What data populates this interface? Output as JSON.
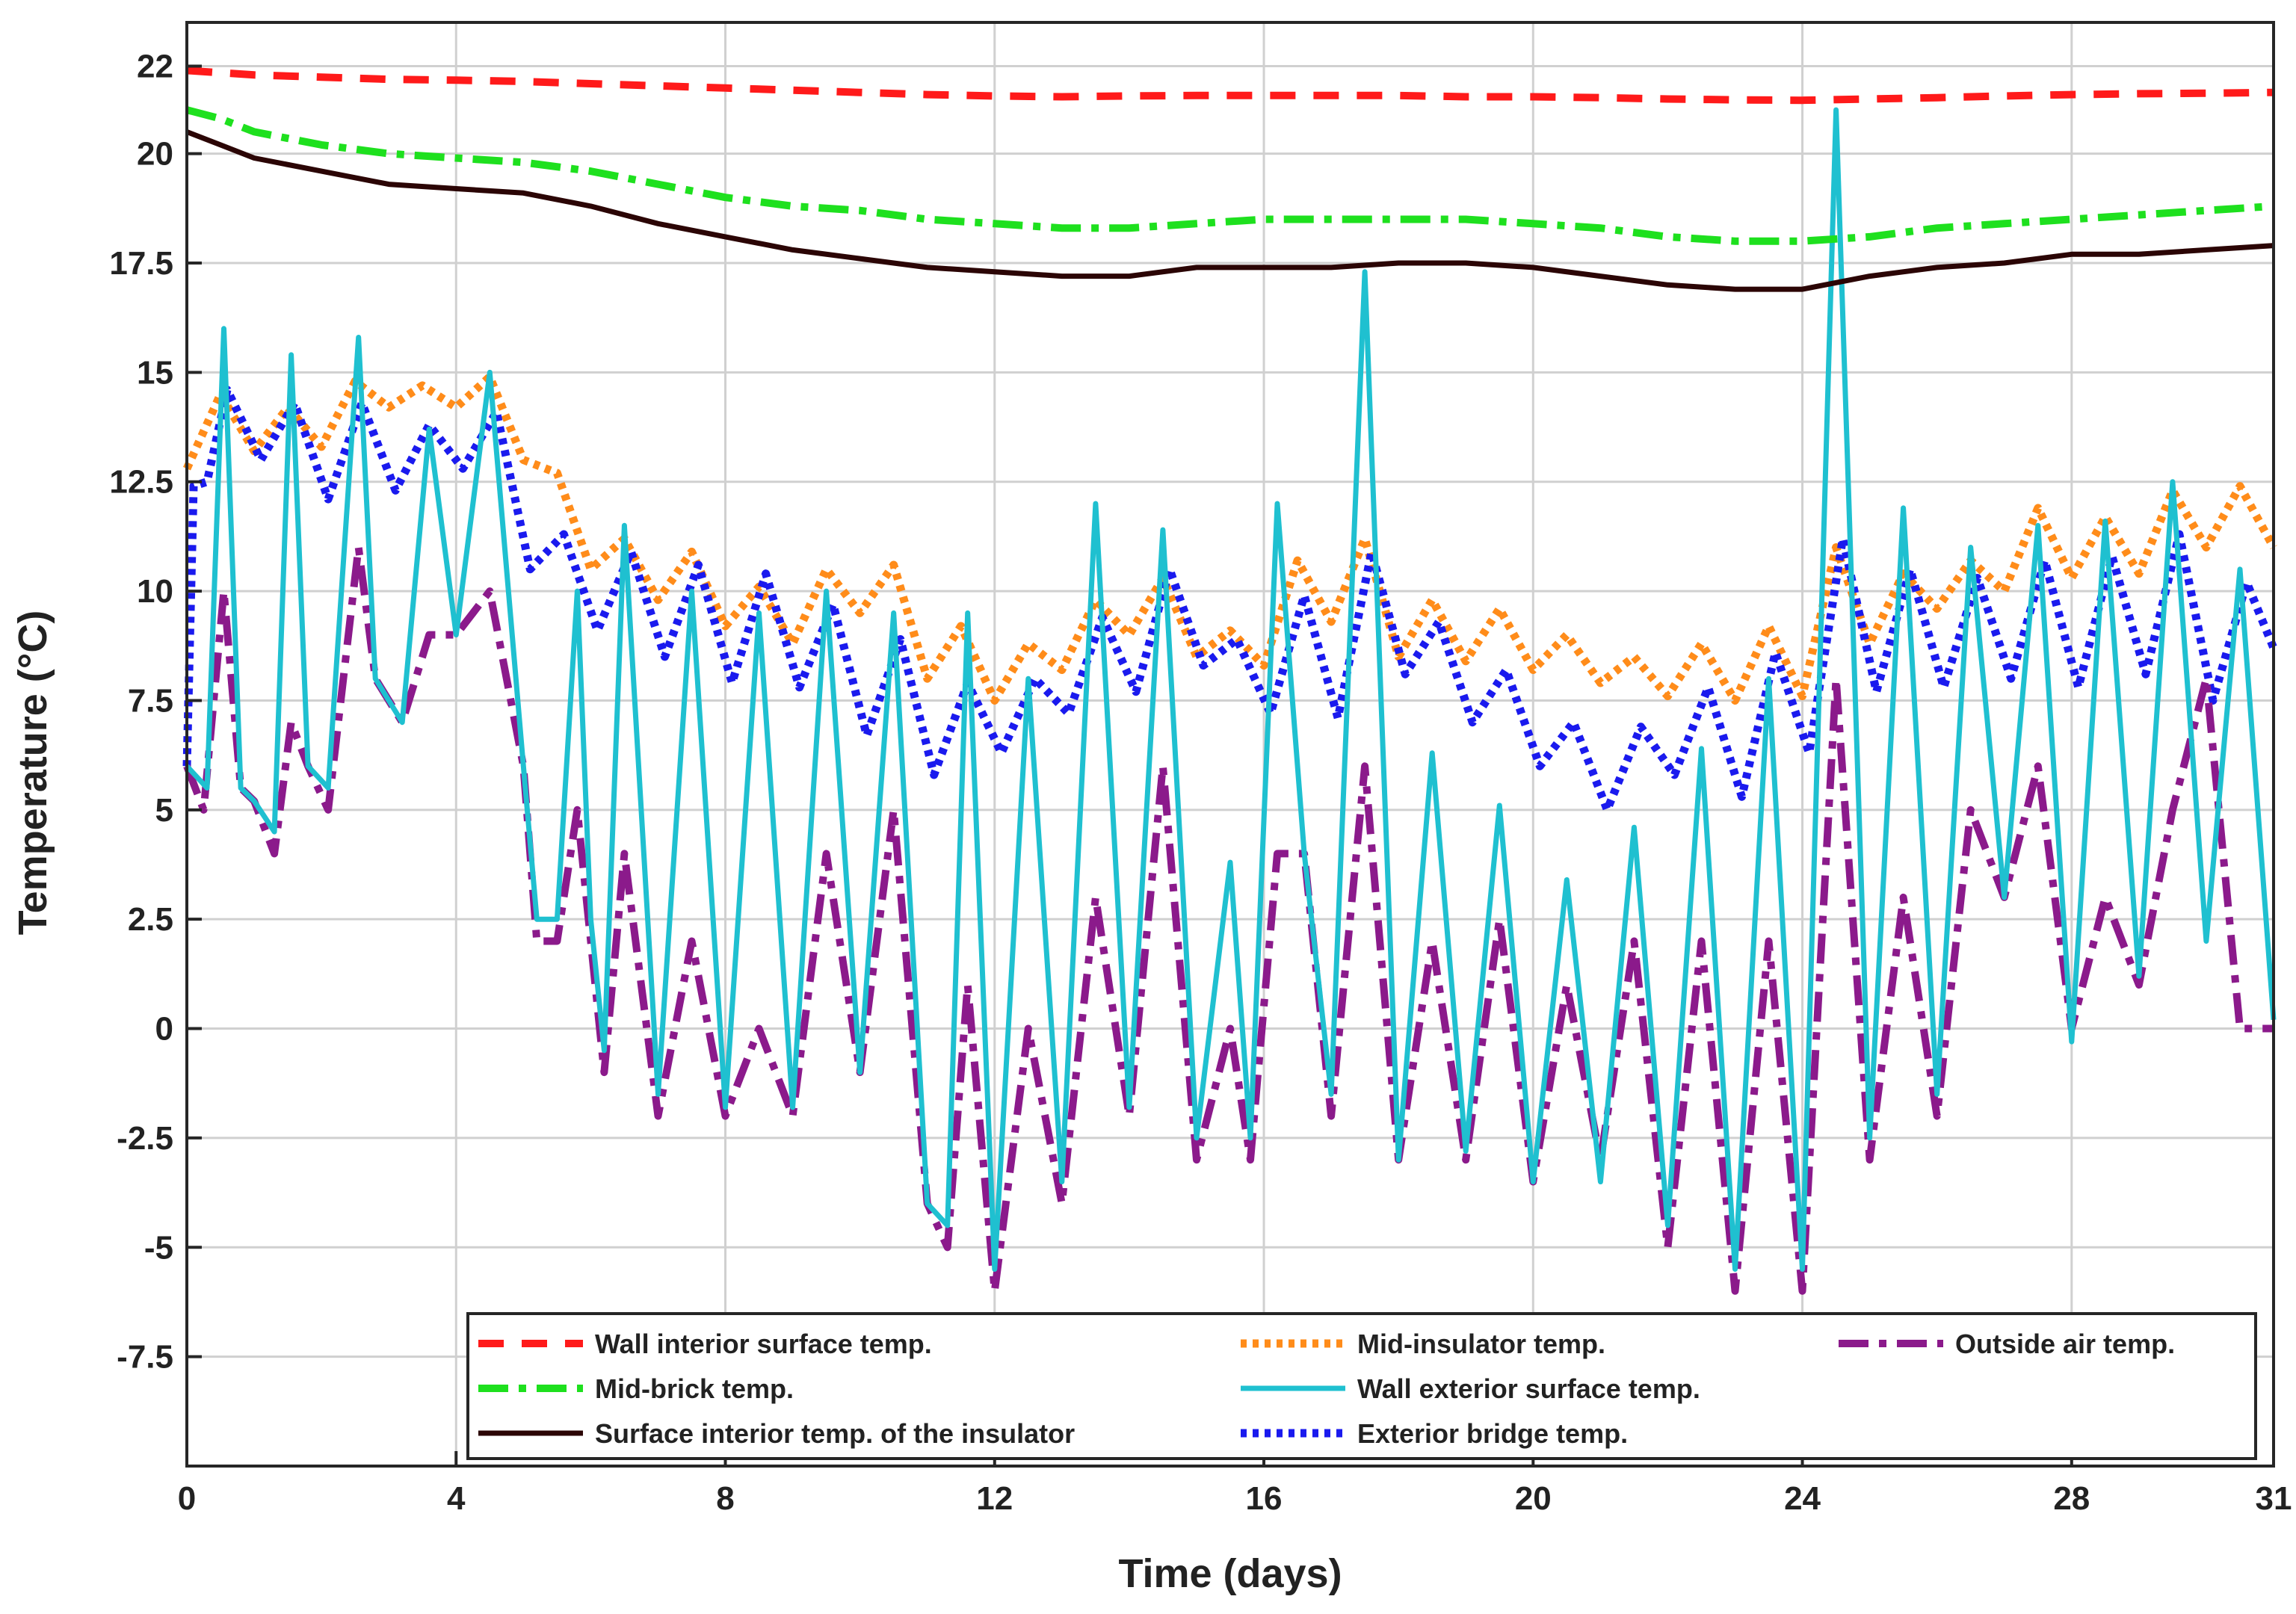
{
  "chart_data": {
    "type": "line",
    "title": "",
    "xlabel": "Time (days)",
    "ylabel": "Temperature (°C)",
    "xlim": [
      0,
      31
    ],
    "ylim": [
      -10,
      23
    ],
    "xticks": [
      0,
      4,
      8,
      12,
      16,
      20,
      24,
      28,
      31
    ],
    "xtick_labels": [
      "0",
      "4",
      "8",
      "12",
      "16",
      "20",
      "24",
      "28",
      "31"
    ],
    "yticks": [
      -7.5,
      -5,
      -2.5,
      0,
      2.5,
      5,
      7.5,
      10,
      12.5,
      15,
      17.5,
      20,
      22
    ],
    "ytick_labels": [
      "-7.5",
      "-5",
      "-2.5",
      "0",
      "2.5",
      "5",
      "7.5",
      "10",
      "12.5",
      "15",
      "17.5",
      "20",
      "22"
    ],
    "grid": true,
    "legend_position": "bottom-right",
    "series": [
      {
        "name": "Wall interior surface temp.",
        "color": "#ff1a1a",
        "style": "dashed",
        "x": [
          0,
          0.5,
          1,
          2,
          3,
          4,
          5,
          6,
          7,
          8,
          9,
          10,
          11,
          12,
          13,
          14,
          15,
          16,
          17,
          18,
          19,
          20,
          21,
          22,
          23,
          24,
          25,
          26,
          27,
          28,
          29,
          30,
          31
        ],
        "y": [
          21.9,
          21.85,
          21.8,
          21.75,
          21.7,
          21.68,
          21.65,
          21.6,
          21.55,
          21.5,
          21.45,
          21.4,
          21.35,
          21.32,
          21.3,
          21.32,
          21.33,
          21.33,
          21.33,
          21.33,
          21.3,
          21.3,
          21.28,
          21.25,
          21.23,
          21.22,
          21.25,
          21.28,
          21.32,
          21.35,
          21.37,
          21.38,
          21.4
        ]
      },
      {
        "name": "Mid-insulator temp.",
        "color": "#ff8c1a",
        "style": "dotted",
        "x": [
          0,
          0.5,
          1,
          1.5,
          2,
          2.5,
          3,
          3.5,
          4,
          4.5,
          5,
          5.5,
          6,
          6.5,
          7,
          7.5,
          8,
          8.5,
          9,
          9.5,
          10,
          10.5,
          11,
          11.5,
          12,
          12.5,
          13,
          13.5,
          14,
          14.5,
          15,
          15.5,
          16,
          16.5,
          17,
          17.5,
          18,
          18.5,
          19,
          19.5,
          20,
          20.5,
          21,
          21.5,
          22,
          22.5,
          23,
          23.5,
          24,
          24.5,
          25,
          25.5,
          26,
          26.5,
          27,
          27.5,
          28,
          28.5,
          29,
          29.5,
          30,
          30.5,
          31
        ],
        "y": [
          12.8,
          14.5,
          13.2,
          14.2,
          13.3,
          14.8,
          14.2,
          14.7,
          14.2,
          14.9,
          13.0,
          12.7,
          10.5,
          11.2,
          9.8,
          10.9,
          9.2,
          10.1,
          8.8,
          10.5,
          9.5,
          10.6,
          8.0,
          9.2,
          7.5,
          8.8,
          8.2,
          9.8,
          9.0,
          10.3,
          8.5,
          9.1,
          8.3,
          10.7,
          9.3,
          11.2,
          8.5,
          9.8,
          8.4,
          9.6,
          8.2,
          9.0,
          7.9,
          8.5,
          7.6,
          8.8,
          7.5,
          9.2,
          7.6,
          11.0,
          8.8,
          10.4,
          9.6,
          10.7,
          10.0,
          11.9,
          10.3,
          11.7,
          10.4,
          12.3,
          11.0,
          12.4,
          11.0
        ]
      },
      {
        "name": "Outside air temp.",
        "color": "#8b1a8b",
        "style": "dashdot",
        "x": [
          0,
          0.25,
          0.55,
          0.8,
          1.0,
          1.3,
          1.55,
          1.8,
          2.1,
          2.55,
          2.8,
          3.2,
          3.6,
          4.0,
          4.5,
          5.0,
          5.2,
          5.5,
          5.8,
          6.0,
          6.2,
          6.5,
          7.0,
          7.5,
          8.0,
          8.5,
          9.0,
          9.5,
          10.0,
          10.5,
          11.0,
          11.3,
          11.6,
          12.0,
          12.5,
          13.0,
          13.5,
          14.0,
          14.5,
          15.0,
          15.5,
          15.8,
          16.2,
          16.6,
          17.0,
          17.5,
          18.0,
          18.5,
          19.0,
          19.5,
          20.0,
          20.5,
          21.0,
          21.5,
          22.0,
          22.5,
          23.0,
          23.5,
          24.0,
          24.5,
          25.0,
          25.5,
          26.0,
          26.5,
          27.0,
          27.5,
          28.0,
          28.5,
          29.0,
          29.5,
          30.0,
          30.5,
          31.0
        ],
        "y": [
          6.0,
          5.0,
          10.0,
          5.5,
          5.2,
          4.0,
          7.0,
          6.0,
          5.0,
          11.0,
          8.0,
          7.0,
          9.0,
          9.0,
          10.0,
          6.0,
          2.0,
          2.0,
          5.0,
          2.0,
          -1.0,
          4.0,
          -2.0,
          2.0,
          -2.0,
          0.0,
          -2.0,
          4.0,
          -1.0,
          5.0,
          -4.0,
          -5.0,
          1.0,
          -6.0,
          0.0,
          -4.0,
          3.0,
          -2.0,
          6.0,
          -3.0,
          0.0,
          -3.0,
          4.0,
          4.0,
          -2.0,
          6.0,
          -3.0,
          2.0,
          -3.0,
          2.5,
          -3.5,
          1.0,
          -3.0,
          2.0,
          -5.0,
          2.0,
          -6.0,
          2.0,
          -6.0,
          8.0,
          -3.0,
          3.0,
          -2.0,
          5.0,
          3.0,
          6.0,
          0.0,
          3.0,
          1.0,
          5.0,
          8.0,
          0.0,
          0.0
        ]
      },
      {
        "name": "Mid-brick temp.",
        "color": "#1ee01e",
        "style": "dashdot",
        "x": [
          0,
          0.5,
          1,
          2,
          3,
          4,
          5,
          6,
          7,
          8,
          9,
          10,
          11,
          12,
          13,
          14,
          15,
          16,
          17,
          18,
          19,
          20,
          21,
          22,
          23,
          24,
          25,
          26,
          27,
          28,
          29,
          30,
          31
        ],
        "y": [
          21.0,
          20.8,
          20.5,
          20.2,
          20.0,
          19.9,
          19.8,
          19.6,
          19.3,
          19.0,
          18.8,
          18.7,
          18.5,
          18.4,
          18.3,
          18.3,
          18.4,
          18.5,
          18.5,
          18.5,
          18.5,
          18.4,
          18.3,
          18.1,
          18.0,
          18.0,
          18.1,
          18.3,
          18.4,
          18.5,
          18.6,
          18.7,
          18.8
        ]
      },
      {
        "name": "Wall exterior surface temp.",
        "color": "#1fc0d0",
        "style": "solid",
        "x": [
          0,
          0.3,
          0.55,
          0.8,
          1.0,
          1.3,
          1.55,
          1.8,
          2.1,
          2.55,
          2.8,
          3.2,
          3.6,
          4.0,
          4.5,
          5.0,
          5.2,
          5.5,
          5.8,
          6.0,
          6.2,
          6.5,
          7.0,
          7.5,
          8.0,
          8.5,
          9.0,
          9.5,
          10.0,
          10.5,
          11.0,
          11.3,
          11.6,
          12.0,
          12.5,
          13.0,
          13.5,
          14.0,
          14.5,
          15.0,
          15.5,
          15.8,
          16.2,
          16.6,
          17.0,
          17.5,
          18.0,
          18.5,
          19.0,
          19.5,
          20.0,
          20.5,
          21.0,
          21.5,
          22.0,
          22.5,
          23.0,
          23.5,
          24.0,
          24.5,
          25.0,
          25.5,
          26.0,
          26.5,
          27.0,
          27.5,
          28.0,
          28.5,
          29.0,
          29.5,
          30.0,
          30.5,
          31.0
        ],
        "y": [
          6.0,
          5.5,
          16.0,
          5.5,
          5.2,
          4.5,
          15.4,
          6.0,
          5.5,
          15.8,
          8.0,
          7.0,
          13.7,
          9.0,
          15.0,
          6.0,
          2.5,
          2.5,
          10.0,
          2.5,
          -0.5,
          11.5,
          -1.5,
          10.0,
          -1.8,
          9.5,
          -1.8,
          10.0,
          -1.0,
          9.5,
          -4.0,
          -4.5,
          9.5,
          -5.5,
          8.0,
          -3.5,
          12.0,
          -1.8,
          11.4,
          -2.5,
          3.8,
          -2.5,
          12.0,
          4.0,
          -1.5,
          17.3,
          -3.0,
          6.3,
          -2.8,
          5.1,
          -3.5,
          3.4,
          -3.5,
          4.6,
          -4.5,
          6.4,
          -5.5,
          8.0,
          -5.5,
          21.0,
          -2.5,
          11.9,
          -1.5,
          11.0,
          3.0,
          11.5,
          -0.3,
          11.6,
          1.2,
          12.5,
          2.0,
          10.5,
          0.2
        ]
      },
      {
        "name": "Surface interior temp. of the insulator",
        "color": "#2b0505",
        "style": "solid",
        "x": [
          0,
          0.5,
          1,
          2,
          3,
          4,
          5,
          6,
          7,
          8,
          9,
          10,
          11,
          12,
          13,
          14,
          15,
          16,
          17,
          18,
          19,
          20,
          21,
          22,
          23,
          24,
          25,
          26,
          27,
          28,
          29,
          30,
          31
        ],
        "y": [
          20.5,
          20.2,
          19.9,
          19.6,
          19.3,
          19.2,
          19.1,
          18.8,
          18.4,
          18.1,
          17.8,
          17.6,
          17.4,
          17.3,
          17.2,
          17.2,
          17.4,
          17.4,
          17.4,
          17.5,
          17.5,
          17.4,
          17.2,
          17.0,
          16.9,
          16.9,
          17.2,
          17.4,
          17.5,
          17.7,
          17.7,
          17.8,
          17.9
        ]
      },
      {
        "name": "Exterior bridge temp.",
        "color": "#1a1aee",
        "style": "dotted",
        "x": [
          0,
          0.1,
          0.3,
          0.6,
          1.1,
          1.6,
          2.1,
          2.6,
          3.1,
          3.6,
          4.1,
          4.6,
          5.1,
          5.6,
          6.1,
          6.6,
          7.1,
          7.6,
          8.1,
          8.6,
          9.1,
          9.6,
          10.1,
          10.6,
          11.1,
          11.6,
          12.1,
          12.6,
          13.1,
          13.6,
          14.1,
          14.6,
          15.1,
          15.6,
          16.1,
          16.6,
          17.1,
          17.6,
          18.1,
          18.6,
          19.1,
          19.6,
          20.1,
          20.6,
          21.1,
          21.6,
          22.1,
          22.6,
          23.1,
          23.6,
          24.1,
          24.6,
          25.1,
          25.6,
          26.1,
          26.6,
          27.1,
          27.6,
          28.1,
          28.6,
          29.1,
          29.6,
          30.1,
          30.6,
          31.0
        ],
        "y": [
          6.0,
          12.4,
          12.5,
          14.6,
          13.0,
          14.3,
          12.1,
          14.3,
          12.3,
          13.8,
          12.8,
          14.1,
          10.5,
          11.3,
          9.1,
          10.9,
          8.5,
          10.6,
          7.9,
          10.4,
          7.8,
          9.7,
          6.7,
          8.9,
          5.8,
          7.9,
          6.3,
          8.0,
          7.2,
          9.4,
          7.7,
          10.5,
          8.3,
          8.9,
          7.2,
          9.9,
          7.1,
          10.9,
          8.1,
          9.3,
          7.0,
          8.2,
          6.0,
          7.0,
          5.0,
          6.9,
          5.8,
          7.8,
          5.3,
          8.6,
          6.3,
          11.2,
          7.7,
          10.5,
          7.8,
          10.3,
          8.0,
          10.7,
          7.8,
          10.8,
          8.1,
          11.3,
          7.5,
          10.2,
          8.7
        ]
      }
    ]
  }
}
